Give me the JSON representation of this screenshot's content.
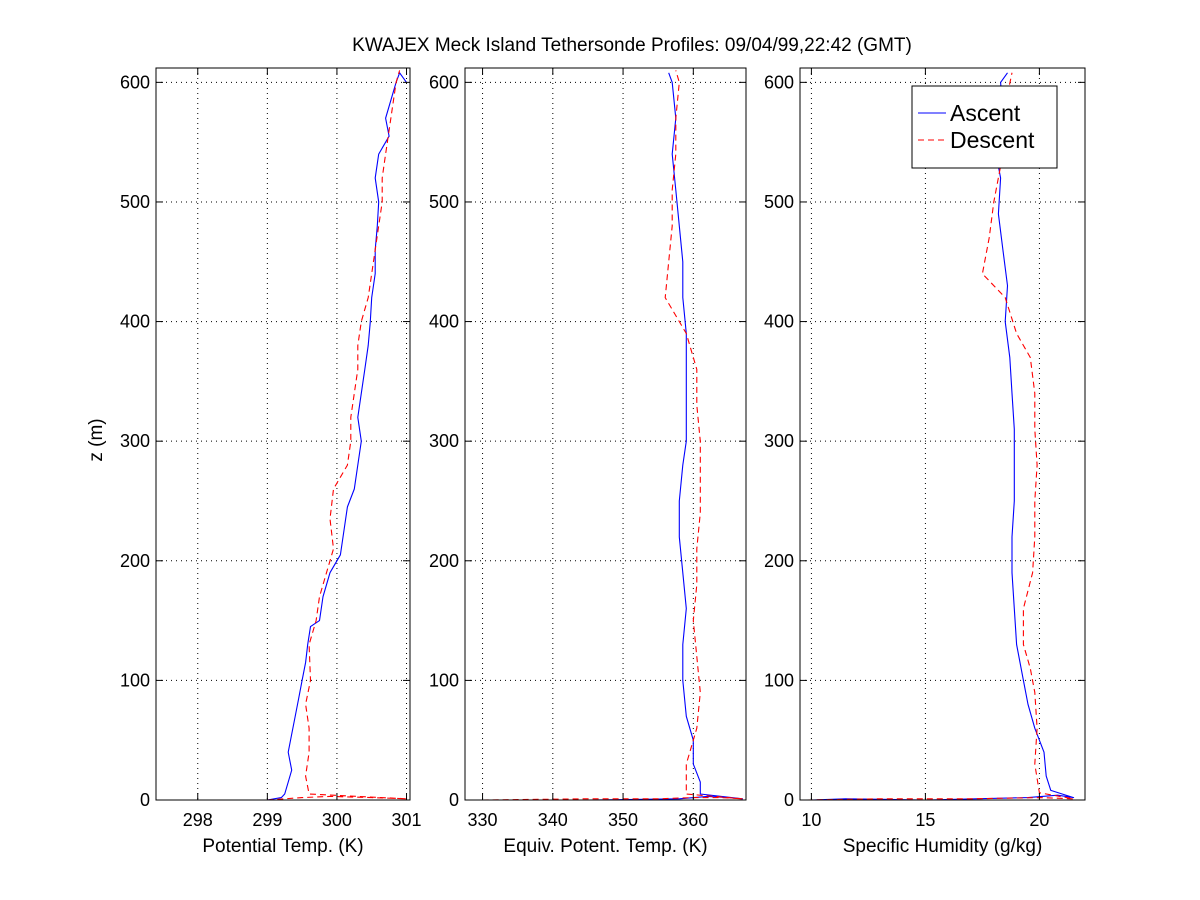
{
  "title": "KWAJEX Meck Island Tethersonde Profiles: 09/04/99,22:42 (GMT)",
  "ylabel": "z (m)",
  "colors": {
    "ascent": "#0000ff",
    "descent": "#ff0000",
    "grid": "#000000",
    "axis": "#000000"
  },
  "chart_data": [
    {
      "type": "line",
      "xlabel": "Potential Temp. (K)",
      "ylabel": "z (m)",
      "xlim": [
        297.4,
        301.05
      ],
      "ylim": [
        0,
        612
      ],
      "xticks": [
        298,
        299,
        300,
        301
      ],
      "yticks": [
        0,
        100,
        200,
        300,
        400,
        500,
        600
      ],
      "grid": true,
      "legend": null,
      "series": [
        {
          "name": "Ascent",
          "style": "solid",
          "points": [
            [
              297.6,
              0
            ],
            [
              298.4,
              0
            ],
            [
              299.0,
              0
            ],
            [
              299.2,
              2
            ],
            [
              299.25,
              5
            ],
            [
              299.3,
              15
            ],
            [
              299.35,
              25
            ],
            [
              299.3,
              40
            ],
            [
              299.35,
              55
            ],
            [
              299.4,
              70
            ],
            [
              299.45,
              85
            ],
            [
              299.5,
              100
            ],
            [
              299.55,
              115
            ],
            [
              299.58,
              130
            ],
            [
              299.62,
              145
            ],
            [
              299.75,
              150
            ],
            [
              299.8,
              170
            ],
            [
              299.9,
              190
            ],
            [
              300.05,
              205
            ],
            [
              300.1,
              225
            ],
            [
              300.15,
              245
            ],
            [
              300.25,
              260
            ],
            [
              300.3,
              280
            ],
            [
              300.35,
              300
            ],
            [
              300.3,
              320
            ],
            [
              300.35,
              340
            ],
            [
              300.4,
              360
            ],
            [
              300.45,
              380
            ],
            [
              300.48,
              400
            ],
            [
              300.5,
              420
            ],
            [
              300.55,
              440
            ],
            [
              300.55,
              460
            ],
            [
              300.58,
              480
            ],
            [
              300.6,
              500
            ],
            [
              300.55,
              520
            ],
            [
              300.6,
              540
            ],
            [
              300.75,
              555
            ],
            [
              300.7,
              570
            ],
            [
              300.8,
              590
            ],
            [
              300.85,
              600
            ],
            [
              300.9,
              608
            ],
            [
              301.0,
              600
            ]
          ]
        },
        {
          "name": "Descent",
          "style": "dashed",
          "points": [
            [
              299.0,
              0
            ],
            [
              299.5,
              2
            ],
            [
              299.9,
              3
            ],
            [
              300.5,
              2
            ],
            [
              301.0,
              1
            ],
            [
              299.6,
              5
            ],
            [
              299.55,
              20
            ],
            [
              299.6,
              40
            ],
            [
              299.6,
              60
            ],
            [
              299.55,
              80
            ],
            [
              299.62,
              100
            ],
            [
              299.6,
              130
            ],
            [
              299.7,
              150
            ],
            [
              299.75,
              170
            ],
            [
              299.85,
              190
            ],
            [
              299.95,
              210
            ],
            [
              299.9,
              235
            ],
            [
              299.95,
              260
            ],
            [
              300.15,
              280
            ],
            [
              300.2,
              300
            ],
            [
              300.2,
              320
            ],
            [
              300.25,
              340
            ],
            [
              300.3,
              360
            ],
            [
              300.3,
              380
            ],
            [
              300.35,
              400
            ],
            [
              300.45,
              420
            ],
            [
              300.5,
              440
            ],
            [
              300.55,
              460
            ],
            [
              300.6,
              480
            ],
            [
              300.65,
              500
            ],
            [
              300.65,
              520
            ],
            [
              300.7,
              540
            ],
            [
              300.75,
              560
            ],
            [
              300.8,
              580
            ],
            [
              300.85,
              600
            ],
            [
              300.9,
              610
            ]
          ]
        }
      ]
    },
    {
      "type": "line",
      "xlabel": "Equiv. Potent. Temp. (K)",
      "ylabel": "",
      "xlim": [
        327.5,
        367.5
      ],
      "ylim": [
        0,
        612
      ],
      "xticks": [
        330,
        340,
        350,
        360
      ],
      "yticks": [
        0,
        100,
        200,
        300,
        400,
        500,
        600
      ],
      "grid": true,
      "legend": null,
      "series": [
        {
          "name": "Ascent",
          "style": "solid",
          "points": [
            [
              328,
              0
            ],
            [
              345,
              0
            ],
            [
              358,
              1
            ],
            [
              362,
              3
            ],
            [
              365,
              2
            ],
            [
              367,
              1
            ],
            [
              361,
              5
            ],
            [
              361,
              15
            ],
            [
              360,
              30
            ],
            [
              360,
              50
            ],
            [
              359,
              70
            ],
            [
              358.5,
              100
            ],
            [
              358.5,
              130
            ],
            [
              359,
              160
            ],
            [
              358.5,
              190
            ],
            [
              358,
              220
            ],
            [
              358,
              250
            ],
            [
              358.5,
              280
            ],
            [
              359,
              300
            ],
            [
              359,
              330
            ],
            [
              359,
              360
            ],
            [
              359,
              390
            ],
            [
              358.5,
              420
            ],
            [
              358.5,
              450
            ],
            [
              358,
              480
            ],
            [
              357.5,
              510
            ],
            [
              357,
              540
            ],
            [
              357.5,
              570
            ],
            [
              357,
              600
            ],
            [
              356.5,
              608
            ]
          ]
        },
        {
          "name": "Descent",
          "style": "dashed",
          "points": [
            [
              330,
              0
            ],
            [
              345,
              1
            ],
            [
              355,
              1
            ],
            [
              360,
              2
            ],
            [
              364,
              2
            ],
            [
              367,
              1
            ],
            [
              359,
              5
            ],
            [
              359,
              30
            ],
            [
              360.5,
              60
            ],
            [
              361,
              90
            ],
            [
              360.5,
              120
            ],
            [
              360,
              150
            ],
            [
              360.5,
              180
            ],
            [
              360.5,
              210
            ],
            [
              361,
              240
            ],
            [
              361,
              270
            ],
            [
              361,
              300
            ],
            [
              360.5,
              330
            ],
            [
              360.5,
              360
            ],
            [
              359,
              390
            ],
            [
              356,
              420
            ],
            [
              356.5,
              450
            ],
            [
              357,
              480
            ],
            [
              357,
              510
            ],
            [
              357.5,
              540
            ],
            [
              357.5,
              570
            ],
            [
              358,
              600
            ],
            [
              357.5,
              610
            ]
          ]
        }
      ]
    },
    {
      "type": "line",
      "xlabel": "Specific Humidity (g/kg)",
      "ylabel": "",
      "xlim": [
        9.5,
        22
      ],
      "ylim": [
        0,
        612
      ],
      "xticks": [
        10,
        15,
        20
      ],
      "yticks": [
        0,
        100,
        200,
        300,
        400,
        500,
        600
      ],
      "grid": true,
      "legend": {
        "position": "top-right",
        "entries": [
          "Ascent",
          "Descent"
        ]
      },
      "series": [
        {
          "name": "Ascent",
          "style": "solid",
          "points": [
            [
              10,
              0
            ],
            [
              11.5,
              1
            ],
            [
              15,
              0
            ],
            [
              19.5,
              2
            ],
            [
              20.8,
              4
            ],
            [
              21.5,
              2
            ],
            [
              20.5,
              8
            ],
            [
              20.3,
              20
            ],
            [
              20.2,
              40
            ],
            [
              19.8,
              60
            ],
            [
              19.5,
              80
            ],
            [
              19.3,
              100
            ],
            [
              19.0,
              130
            ],
            [
              18.9,
              160
            ],
            [
              18.8,
              190
            ],
            [
              18.8,
              220
            ],
            [
              18.9,
              250
            ],
            [
              18.9,
              280
            ],
            [
              18.9,
              310
            ],
            [
              18.8,
              340
            ],
            [
              18.7,
              370
            ],
            [
              18.5,
              400
            ],
            [
              18.6,
              430
            ],
            [
              18.4,
              460
            ],
            [
              18.2,
              490
            ],
            [
              18.3,
              520
            ],
            [
              18.0,
              550
            ],
            [
              18.4,
              575
            ],
            [
              18.3,
              600
            ],
            [
              18.6,
              608
            ]
          ]
        },
        {
          "name": "Descent",
          "style": "dashed",
          "points": [
            [
              9.8,
              0
            ],
            [
              13,
              1
            ],
            [
              17,
              1
            ],
            [
              20,
              2
            ],
            [
              21.5,
              1
            ],
            [
              20,
              6
            ],
            [
              19.8,
              30
            ],
            [
              19.9,
              60
            ],
            [
              19.8,
              90
            ],
            [
              19.6,
              110
            ],
            [
              19.3,
              130
            ],
            [
              19.3,
              160
            ],
            [
              19.7,
              190
            ],
            [
              19.8,
              220
            ],
            [
              19.8,
              250
            ],
            [
              19.9,
              280
            ],
            [
              19.8,
              310
            ],
            [
              19.8,
              340
            ],
            [
              19.6,
              370
            ],
            [
              19.0,
              390
            ],
            [
              18.5,
              420
            ],
            [
              17.5,
              440
            ],
            [
              17.8,
              470
            ],
            [
              18.0,
              500
            ],
            [
              18.3,
              530
            ],
            [
              18.5,
              560
            ],
            [
              18.6,
              590
            ],
            [
              18.8,
              608
            ]
          ]
        }
      ]
    }
  ]
}
